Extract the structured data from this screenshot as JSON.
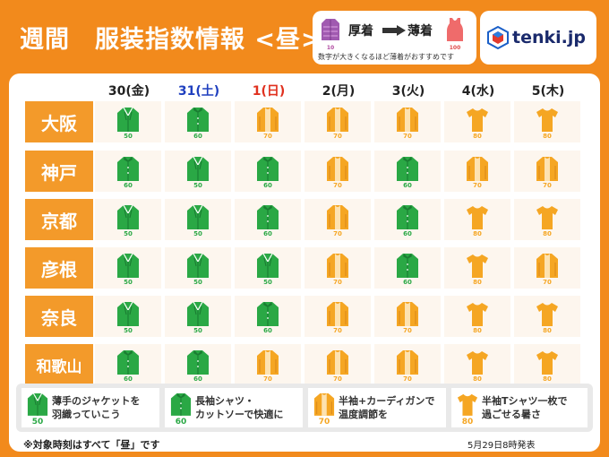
{
  "title": "週間　服装指数情報 <昼>",
  "legend": {
    "heavy_label": "厚着",
    "light_label": "薄着",
    "low_num": "10",
    "high_num": "100",
    "description": "数字が大きくなるほど薄着がおすすめです"
  },
  "logo": {
    "text": "tenki.jp"
  },
  "days": [
    {
      "label": "30(金)",
      "color": "#222222"
    },
    {
      "label": "31(土)",
      "color": "#1f3fbf"
    },
    {
      "label": "1(日)",
      "color": "#e0301e"
    },
    {
      "label": "2(月)",
      "color": "#222222"
    },
    {
      "label": "3(火)",
      "color": "#222222"
    },
    {
      "label": "4(水)",
      "color": "#222222"
    },
    {
      "label": "5(木)",
      "color": "#222222"
    }
  ],
  "cities": [
    {
      "name": "大阪",
      "values": [
        "50",
        "60",
        "70",
        "70",
        "70",
        "80",
        "80"
      ]
    },
    {
      "name": "神戸",
      "values": [
        "60",
        "50",
        "60",
        "70",
        "60",
        "70",
        "70"
      ]
    },
    {
      "name": "京都",
      "values": [
        "50",
        "50",
        "60",
        "70",
        "60",
        "80",
        "80"
      ]
    },
    {
      "name": "彦根",
      "values": [
        "50",
        "50",
        "50",
        "70",
        "60",
        "80",
        "70"
      ]
    },
    {
      "name": "奈良",
      "values": [
        "50",
        "50",
        "60",
        "70",
        "70",
        "80",
        "80"
      ]
    },
    {
      "name": "和歌山",
      "values": [
        "60",
        "60",
        "70",
        "70",
        "70",
        "80",
        "80"
      ]
    }
  ],
  "clothing_legend": [
    {
      "value": "50",
      "type": "jacket",
      "line1": "薄手のジャケットを",
      "line2": "羽織っていこう"
    },
    {
      "value": "60",
      "type": "shirt",
      "line1": "長袖シャツ・",
      "line2": "カットソーで快適に"
    },
    {
      "value": "70",
      "type": "cardigan",
      "line1": "半袖+カーディガンで",
      "line2": "温度調節を"
    },
    {
      "value": "80",
      "type": "tshirt",
      "line1": "半袖Tシャツ一枚で",
      "line2": "過ごせる暑さ"
    }
  ],
  "footnote": "※対象時刻はすべて「昼」です",
  "issued": "5月29日8時発表",
  "colors": {
    "green": "#2aa845",
    "orange": "#f5a623",
    "header_orange": "#f28a1c"
  }
}
